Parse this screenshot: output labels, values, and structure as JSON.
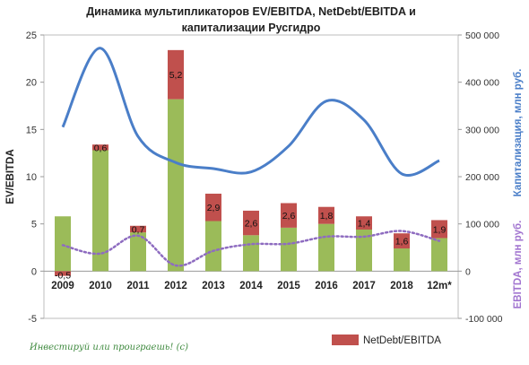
{
  "chart_data": {
    "type": "bar",
    "title_line1": "Динамика мультипликаторов EV/EBITDA, NetDebt/EBITDA и",
    "title_line2": "капитализации Русгидро",
    "ylabel_left": "EV/EBITDA",
    "ylabel_right_cap": "Капитализация, млн руб.",
    "ylabel_right_ebitda": "EBITDA, млн руб.",
    "categories": [
      "2009",
      "2010",
      "2011",
      "2012",
      "2013",
      "2014",
      "2015",
      "2016",
      "2017",
      "2018",
      "12m*"
    ],
    "left_axis": {
      "min": -5,
      "max": 25,
      "ticks": [
        -5,
        0,
        5,
        10,
        15,
        20,
        25
      ]
    },
    "right_axis": {
      "min": -100000,
      "max": 500000,
      "ticks": [
        -100000,
        0,
        100000,
        200000,
        300000,
        400000,
        500000
      ],
      "tick_labels": [
        "-100 000",
        "0",
        "100 000",
        "200 000",
        "300 000",
        "400 000",
        "500 000"
      ]
    },
    "series": [
      {
        "name": "EV/EBITDA",
        "kind": "bar",
        "axis": "left",
        "color": "#9bbb59",
        "values": [
          5.8,
          12.8,
          4.1,
          18.2,
          5.3,
          3.8,
          4.6,
          5.0,
          4.4,
          2.4,
          3.5
        ]
      },
      {
        "name": "NetDebt/EBITDA",
        "kind": "bar-stacked",
        "axis": "left",
        "color": "#c0504d",
        "values": [
          -0.5,
          0.6,
          0.7,
          5.2,
          2.9,
          2.6,
          2.6,
          1.8,
          1.4,
          1.6,
          1.9
        ],
        "labels": [
          "-0,5",
          "0,6",
          "0,7",
          "5,2",
          "2,9",
          "2,6",
          "2,6",
          "1,8",
          "1,4",
          "1,6",
          "1,9"
        ]
      },
      {
        "name": "Капитализация",
        "kind": "line",
        "axis": "right",
        "color": "#4a7ec8",
        "values": [
          305000,
          472000,
          285000,
          230000,
          217000,
          210000,
          265000,
          360000,
          320000,
          206000,
          234000
        ]
      },
      {
        "name": "EBITDA",
        "kind": "line-dotted",
        "axis": "right",
        "color": "#8e6cc0",
        "values": [
          55000,
          37000,
          75000,
          12000,
          43000,
          57000,
          58000,
          73000,
          73000,
          85000,
          64000
        ]
      }
    ],
    "legend": {
      "placement": "bottom-right",
      "entries": [
        "NetDebt/EBITDA"
      ]
    },
    "grid": false
  },
  "watermark": "Инвестируй или проиграешь! (с)"
}
